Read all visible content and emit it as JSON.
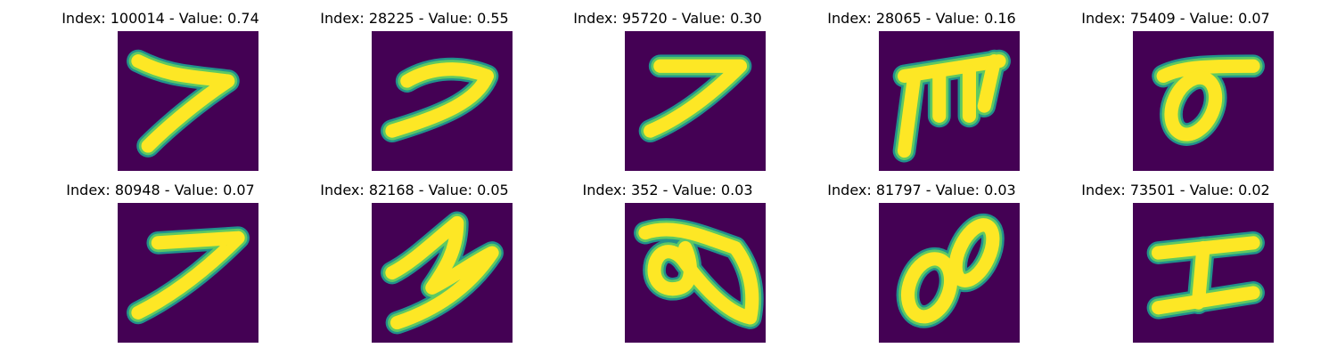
{
  "colors": {
    "background": "#440154",
    "stroke_edge": "#21918c",
    "stroke_mid": "#5ec962",
    "stroke_core": "#fde725"
  },
  "items": [
    {
      "title": "Index: 100014 - Value: 0.74",
      "glyph": "seven-slanted-icon"
    },
    {
      "title": "Index: 28225 - Value: 0.55",
      "glyph": "seven-curved-icon"
    },
    {
      "title": "Index: 95720 - Value: 0.30",
      "glyph": "seven-icon"
    },
    {
      "title": "Index: 28065 - Value: 0.16",
      "glyph": "m-glyph-icon"
    },
    {
      "title": "Index: 75409 - Value: 0.07",
      "glyph": "sigma-glyph-icon"
    },
    {
      "title": "Index: 80948 - Value: 0.07",
      "glyph": "seven-icon"
    },
    {
      "title": "Index: 82168 - Value: 0.05",
      "glyph": "z-glyph-icon"
    },
    {
      "title": "Index: 352 - Value: 0.03",
      "glyph": "loop-glyph-icon"
    },
    {
      "title": "Index: 81797 - Value: 0.03",
      "glyph": "eight-sideways-icon"
    },
    {
      "title": "Index: 73501 - Value: 0.02",
      "glyph": "i-glyph-icon"
    }
  ]
}
